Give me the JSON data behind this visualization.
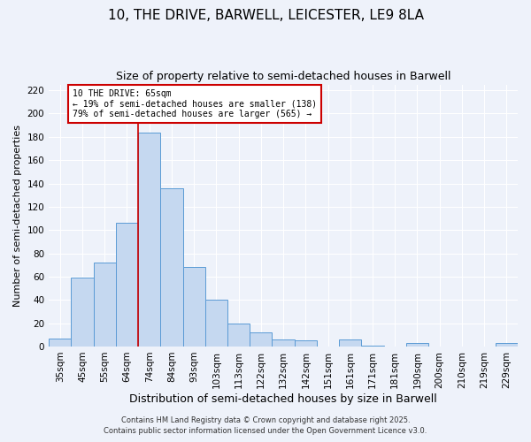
{
  "title": "10, THE DRIVE, BARWELL, LEICESTER, LE9 8LA",
  "subtitle": "Size of property relative to semi-detached houses in Barwell",
  "xlabel": "Distribution of semi-detached houses by size in Barwell",
  "ylabel": "Number of semi-detached properties",
  "categories": [
    "35sqm",
    "45sqm",
    "55sqm",
    "64sqm",
    "74sqm",
    "84sqm",
    "93sqm",
    "103sqm",
    "113sqm",
    "122sqm",
    "132sqm",
    "142sqm",
    "151sqm",
    "161sqm",
    "171sqm",
    "181sqm",
    "190sqm",
    "200sqm",
    "210sqm",
    "219sqm",
    "229sqm"
  ],
  "values": [
    7,
    59,
    72,
    106,
    184,
    136,
    68,
    40,
    20,
    12,
    6,
    5,
    0,
    6,
    1,
    0,
    3,
    0,
    0,
    0,
    3
  ],
  "bar_color": "#c5d8f0",
  "bar_edge_color": "#5b9bd5",
  "vline_color": "#cc0000",
  "annotation_text": "10 THE DRIVE: 65sqm\n← 19% of semi-detached houses are smaller (138)\n79% of semi-detached houses are larger (565) →",
  "annotation_box_color": "#ffffff",
  "annotation_box_edge_color": "#cc0000",
  "ylim": [
    0,
    225
  ],
  "yticks": [
    0,
    20,
    40,
    60,
    80,
    100,
    120,
    140,
    160,
    180,
    200,
    220
  ],
  "bg_color": "#eef2fa",
  "grid_color": "#ffffff",
  "footer1": "Contains HM Land Registry data © Crown copyright and database right 2025.",
  "footer2": "Contains public sector information licensed under the Open Government Licence v3.0.",
  "title_fontsize": 11,
  "subtitle_fontsize": 9,
  "xlabel_fontsize": 9,
  "ylabel_fontsize": 8,
  "tick_fontsize": 7.5,
  "footer_fontsize": 6
}
